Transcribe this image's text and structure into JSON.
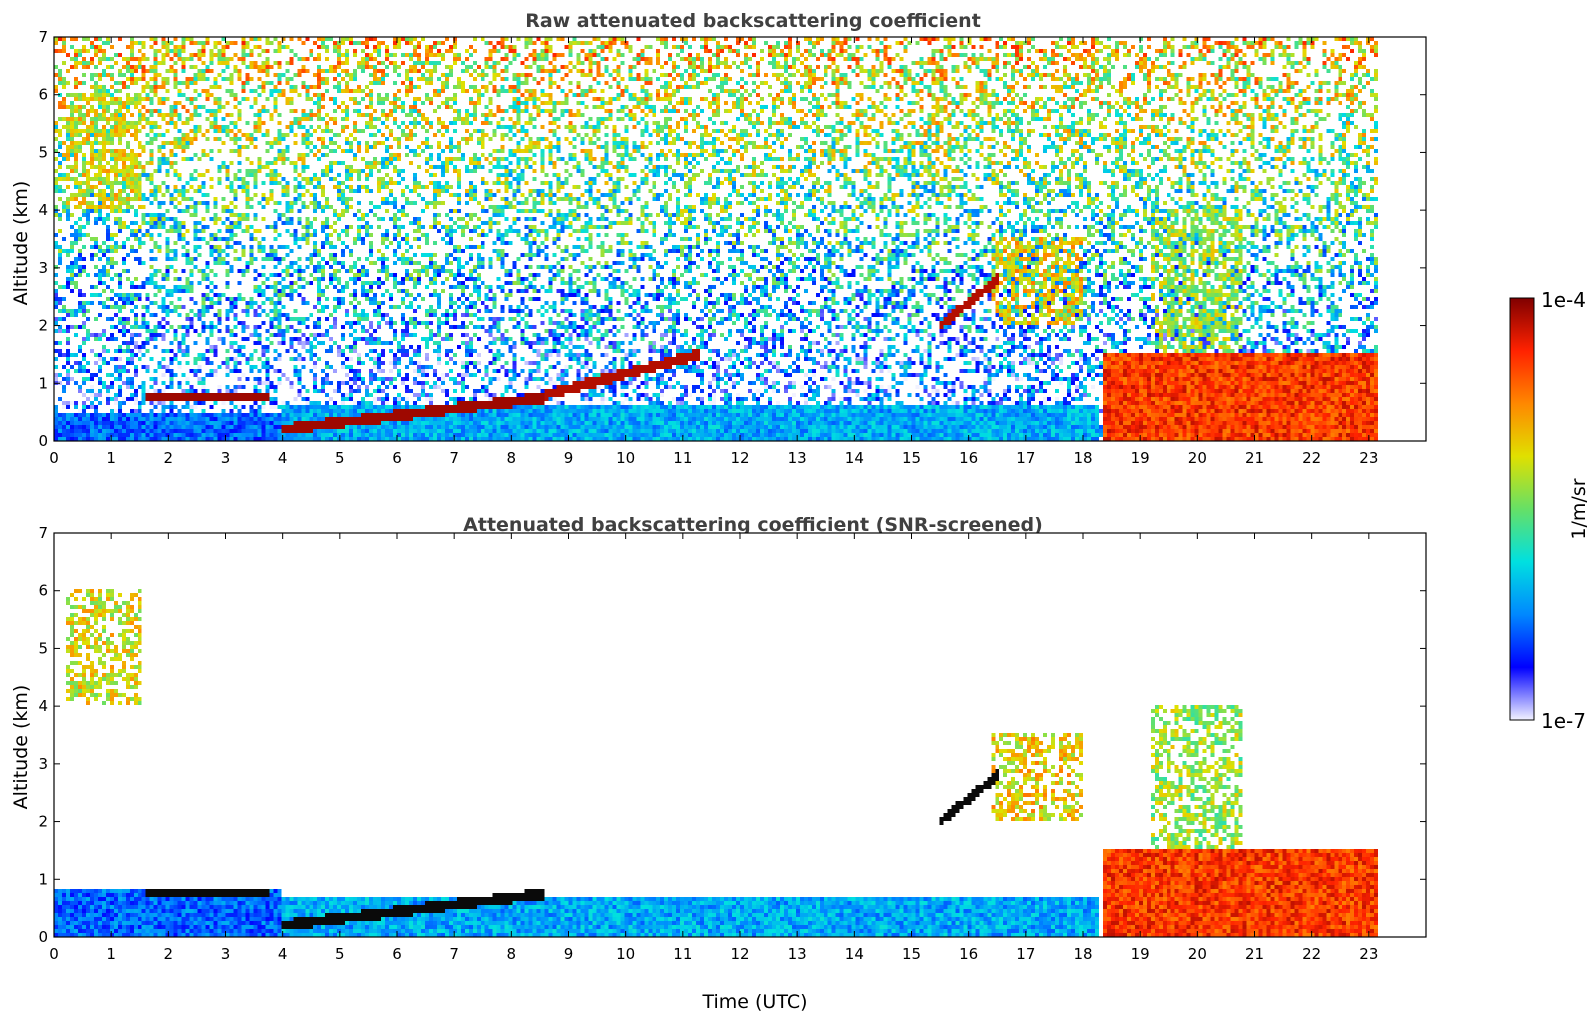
{
  "chart_data": [
    {
      "type": "heatmap",
      "title": "Raw attenuated backscattering coefficient",
      "xlabel": "",
      "ylabel": "Altitude (km)",
      "xlim": [
        0,
        24
      ],
      "ylim": [
        0,
        7
      ],
      "x_ticks": [
        "0",
        "1",
        "2",
        "3",
        "4",
        "5",
        "6",
        "7",
        "8",
        "9",
        "10",
        "11",
        "12",
        "13",
        "14",
        "15",
        "16",
        "17",
        "18",
        "19",
        "20",
        "21",
        "22",
        "23"
      ],
      "y_ticks": [
        "0",
        "1",
        "2",
        "3",
        "4",
        "5",
        "6",
        "7"
      ],
      "data_end_time": 23.15,
      "grid": false,
      "features": [
        {
          "kind": "boundary-layer",
          "t0": 0.0,
          "t1": 4.0,
          "top_km": 0.5,
          "level": 0.22
        },
        {
          "kind": "boundary-layer",
          "t0": 4.0,
          "t1": 18.3,
          "top_km": 0.6,
          "level": 0.3
        },
        {
          "kind": "cloud-base",
          "t0": 1.6,
          "t1": 3.8,
          "alt_km": 0.75,
          "level": 0.97
        },
        {
          "kind": "cloud-base",
          "t0": 4.0,
          "t1": 8.6,
          "alt_km": 0.2,
          "alt_end_km": 0.75,
          "level": 0.97
        },
        {
          "kind": "cloud-base",
          "t0": 8.6,
          "t1": 11.3,
          "alt_km": 0.8,
          "alt_end_km": 1.5,
          "level": 0.95
        },
        {
          "kind": "cirrus",
          "t0": 0.2,
          "t1": 1.5,
          "alt_km": 4.0,
          "alt_end_km": 6.0,
          "level": 0.62
        },
        {
          "kind": "elevated-layer",
          "t0": 15.5,
          "t1": 16.5,
          "alt_km": 2.0,
          "alt_end_km": 2.8,
          "level": 0.95
        },
        {
          "kind": "mid-cloud",
          "t0": 16.4,
          "t1": 18.0,
          "alt_km": 2.0,
          "alt_end_km": 3.5,
          "level": 0.65
        },
        {
          "kind": "thick-cloud",
          "t0": 18.35,
          "t1": 23.15,
          "top_km": 1.5,
          "level": 0.85
        },
        {
          "kind": "convective-cloud",
          "t0": 19.2,
          "t1": 20.8,
          "alt_km": 1.5,
          "alt_end_km": 4.0,
          "level": 0.55
        }
      ],
      "colorbar": {
        "label": "1/m/sr",
        "min_label": "1e-7",
        "max_label": "1e-4",
        "scale": "log",
        "colors": [
          "#f2f2ff",
          "#0000ff",
          "#0088ff",
          "#00e0e0",
          "#66e066",
          "#e0e000",
          "#ff8800",
          "#ff2200",
          "#800000"
        ]
      }
    },
    {
      "type": "heatmap",
      "title": "Attenuated backscattering coefficient (SNR-screened)",
      "xlabel": "Time (UTC)",
      "ylabel": "Altitude (km)",
      "xlim": [
        0,
        24
      ],
      "ylim": [
        0,
        7
      ],
      "x_ticks": [
        "0",
        "1",
        "2",
        "3",
        "4",
        "5",
        "6",
        "7",
        "8",
        "9",
        "10",
        "11",
        "12",
        "13",
        "14",
        "15",
        "16",
        "17",
        "18",
        "19",
        "20",
        "21",
        "22",
        "23"
      ],
      "y_ticks": [
        "0",
        "1",
        "2",
        "3",
        "4",
        "5",
        "6",
        "7"
      ],
      "data_end_time": 23.15,
      "grid": false,
      "features": [
        {
          "kind": "boundary-layer",
          "t0": 0.0,
          "t1": 4.0,
          "top_km": 0.8,
          "level": 0.22
        },
        {
          "kind": "boundary-layer",
          "t0": 4.0,
          "t1": 18.3,
          "top_km": 0.7,
          "level": 0.3
        },
        {
          "kind": "cloud-base",
          "t0": 1.6,
          "t1": 3.8,
          "alt_km": 0.75,
          "level": 1.0
        },
        {
          "kind": "cloud-base",
          "t0": 4.0,
          "t1": 8.6,
          "alt_km": 0.2,
          "alt_end_km": 0.75,
          "level": 1.0
        },
        {
          "kind": "cirrus",
          "t0": 0.2,
          "t1": 1.5,
          "alt_km": 4.0,
          "alt_end_km": 6.0,
          "level": 0.62
        },
        {
          "kind": "elevated-layer",
          "t0": 15.5,
          "t1": 16.5,
          "alt_km": 2.0,
          "alt_end_km": 2.8,
          "level": 1.0
        },
        {
          "kind": "mid-cloud",
          "t0": 16.4,
          "t1": 18.0,
          "alt_km": 2.0,
          "alt_end_km": 3.5,
          "level": 0.65
        },
        {
          "kind": "thick-cloud",
          "t0": 18.35,
          "t1": 23.15,
          "top_km": 1.5,
          "level": 0.85
        },
        {
          "kind": "convective-cloud",
          "t0": 19.2,
          "t1": 20.8,
          "alt_km": 1.5,
          "alt_end_km": 4.0,
          "level": 0.55
        }
      ]
    }
  ]
}
